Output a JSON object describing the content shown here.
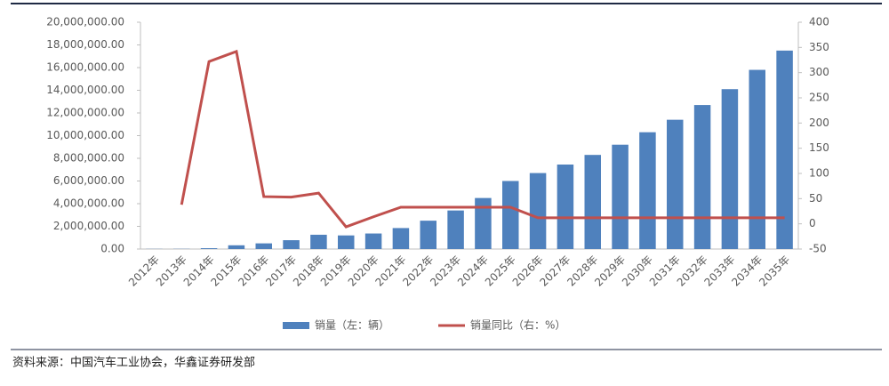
{
  "chart_data": {
    "type": "bar",
    "categories": [
      "2012年",
      "2013年",
      "2014年",
      "2015年",
      "2016年",
      "2017年",
      "2018年",
      "2019年",
      "2020年",
      "2021年",
      "2022年",
      "2023年",
      "2024年",
      "2025年",
      "2026年",
      "2027年",
      "2028年",
      "2029年",
      "2030年",
      "2031年",
      "2032年",
      "2033年",
      "2034年",
      "2035年"
    ],
    "series": [
      {
        "name": "销量（左：辆）",
        "type": "bar",
        "color": "#4f81bd",
        "values": [
          13000,
          18000,
          75000,
          330000,
          500000,
          780000,
          1260000,
          1200000,
          1370000,
          1850000,
          2500000,
          3400000,
          4500000,
          6000000,
          6700000,
          7450000,
          8300000,
          9200000,
          10300000,
          11400000,
          12700000,
          14100000,
          15800000,
          17500000
        ]
      },
      {
        "name": "销量同比（右：%）",
        "type": "line",
        "axis": "y2",
        "color": "#c0504d",
        "values": [
          null,
          38,
          322,
          342,
          54,
          53,
          61,
          -6,
          14,
          33,
          33,
          33,
          33,
          33,
          12,
          12,
          12,
          12,
          12,
          12,
          12,
          12,
          12,
          12
        ]
      }
    ],
    "ylim": [
      0,
      20000000
    ],
    "yticks": [
      {
        "value": 0,
        "label": "0.00"
      },
      {
        "value": 2000000,
        "label": "2,000,000.00"
      },
      {
        "value": 4000000,
        "label": "4,000,000.00"
      },
      {
        "value": 6000000,
        "label": "6,000,000.00"
      },
      {
        "value": 8000000,
        "label": "8,000,000.00"
      },
      {
        "value": 10000000,
        "label": "10,000,000.00"
      },
      {
        "value": 12000000,
        "label": "12,000,000.00"
      },
      {
        "value": 14000000,
        "label": "14,000,000.00"
      },
      {
        "value": 16000000,
        "label": "16,000,000.00"
      },
      {
        "value": 18000000,
        "label": "18,000,000.00"
      },
      {
        "value": 20000000,
        "label": "20,000,000.00"
      }
    ],
    "y2lim": [
      -50,
      400
    ],
    "y2ticks": [
      -50,
      0,
      50,
      100,
      150,
      200,
      250,
      300,
      350,
      400
    ],
    "legend": "bottom",
    "source": "资料来源：中国汽车工业协会，华鑫证券研发部"
  }
}
